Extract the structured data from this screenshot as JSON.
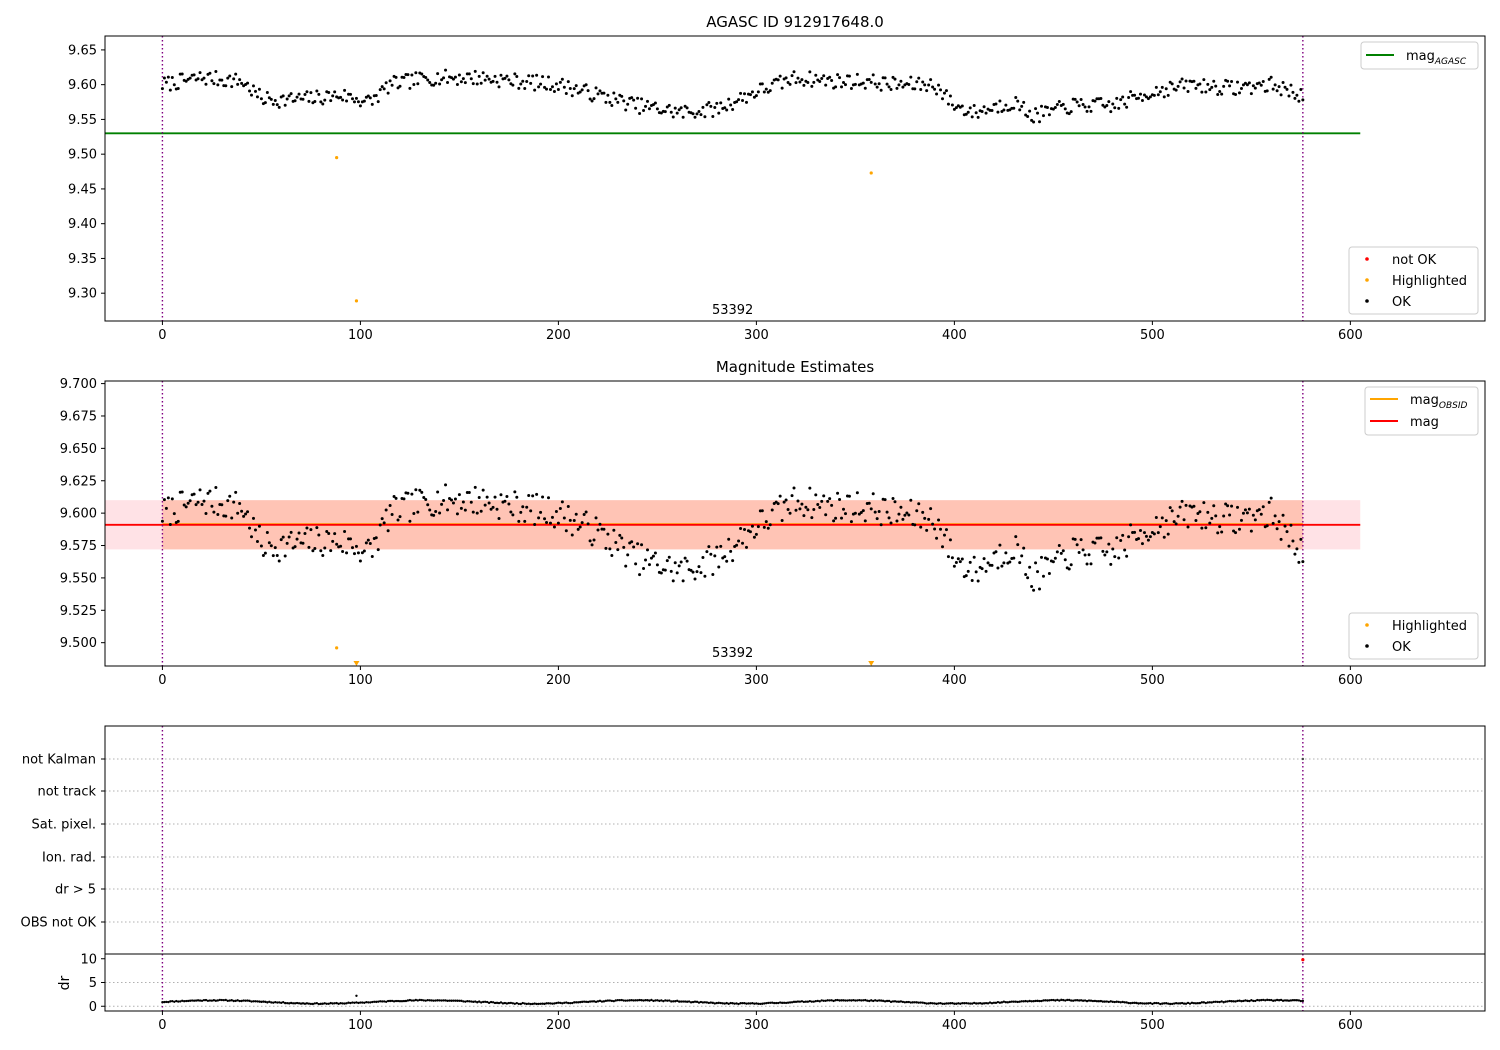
{
  "chart_data": [
    {
      "id": "agasc",
      "type": "scatter",
      "title": "AGASC ID 912917648.0",
      "xlim": [
        -29,
        668
      ],
      "ylim": [
        9.26,
        9.67
      ],
      "xticks": [
        "0",
        "100",
        "200",
        "300",
        "400",
        "500",
        "600"
      ],
      "yticks": [
        "9.30",
        "9.35",
        "9.40",
        "9.45",
        "9.50",
        "9.55",
        "9.60",
        "9.65"
      ],
      "obs_lines_x": [
        0,
        576
      ],
      "obs_label": {
        "text": "53392",
        "x": 288,
        "y": 9.27
      },
      "reference_lines": [
        {
          "name": "mag",
          "subscript": "AGASC",
          "y": 9.53,
          "x_range": [
            -29,
            605
          ],
          "color": "#008000"
        }
      ],
      "legend_lines": [
        {
          "name": "mag",
          "subscript": "AGASC",
          "color": "#008000"
        }
      ],
      "legend_points": [
        {
          "name": "not OK",
          "color": "#ff0000"
        },
        {
          "name": "Highlighted",
          "color": "#ffa500"
        },
        {
          "name": "OK",
          "color": "#000000"
        }
      ],
      "series": [
        {
          "name": "Highlighted",
          "color": "#ffa500",
          "points": [
            [
              88,
              9.495
            ],
            [
              98,
              9.289
            ],
            [
              358,
              9.473
            ]
          ]
        },
        {
          "name": "OK",
          "color": "#000000",
          "anchors": [
            [
              0,
              9.6
            ],
            [
              20,
              9.61
            ],
            [
              40,
              9.605
            ],
            [
              50,
              9.58
            ],
            [
              60,
              9.578
            ],
            [
              75,
              9.58
            ],
            [
              90,
              9.585
            ],
            [
              105,
              9.575
            ],
            [
              115,
              9.6
            ],
            [
              135,
              9.61
            ],
            [
              160,
              9.61
            ],
            [
              180,
              9.605
            ],
            [
              200,
              9.6
            ],
            [
              220,
              9.585
            ],
            [
              240,
              9.57
            ],
            [
              262,
              9.56
            ],
            [
              280,
              9.565
            ],
            [
              300,
              9.59
            ],
            [
              320,
              9.61
            ],
            [
              340,
              9.605
            ],
            [
              355,
              9.605
            ],
            [
              370,
              9.6
            ],
            [
              390,
              9.6
            ],
            [
              400,
              9.57
            ],
            [
              410,
              9.56
            ],
            [
              430,
              9.575
            ],
            [
              440,
              9.555
            ],
            [
              460,
              9.57
            ],
            [
              480,
              9.57
            ],
            [
              500,
              9.59
            ],
            [
              520,
              9.6
            ],
            [
              540,
              9.595
            ],
            [
              560,
              9.6
            ],
            [
              576,
              9.585
            ]
          ],
          "noise": 0.011
        }
      ]
    },
    {
      "id": "estimates",
      "type": "scatter",
      "title": "Magnitude Estimates",
      "xlim": [
        -29,
        668
      ],
      "ylim": [
        9.482,
        9.702
      ],
      "xticks": [
        "0",
        "100",
        "200",
        "300",
        "400",
        "500",
        "600"
      ],
      "yticks": [
        "9.500",
        "9.525",
        "9.550",
        "9.575",
        "9.600",
        "9.625",
        "9.650",
        "9.675",
        "9.700"
      ],
      "obs_lines_x": [
        0,
        576
      ],
      "obs_label": {
        "text": "53392",
        "x": 288,
        "y": 9.489
      },
      "bands": [
        {
          "y_range": [
            9.572,
            9.61
          ],
          "x_range": [
            -29,
            605
          ],
          "color": "#ffb6c1"
        },
        {
          "y_range": [
            9.572,
            9.61
          ],
          "x_range": [
            0,
            576
          ],
          "color": "#ffa07a"
        }
      ],
      "reference_lines": [
        {
          "name": "mag",
          "subscript": "OBSID",
          "y": 9.5915,
          "x_range": [
            0,
            576
          ],
          "color": "#ffa500"
        },
        {
          "name": "mag",
          "y": 9.591,
          "x_range": [
            -29,
            605
          ],
          "color": "#ff0000"
        }
      ],
      "legend_lines": [
        {
          "name": "mag",
          "subscript": "OBSID",
          "color": "#ffa500"
        },
        {
          "name": "mag",
          "color": "#ff0000"
        }
      ],
      "legend_points": [
        {
          "name": "Highlighted",
          "color": "#ffa500"
        },
        {
          "name": "OK",
          "color": "#000000"
        }
      ],
      "series": [
        {
          "name": "Highlighted",
          "color": "#ffa500",
          "points": [
            [
              88,
              9.496
            ]
          ],
          "clipped_x": [
            98,
            358
          ]
        },
        {
          "name": "OK",
          "color": "#000000",
          "anchors": [
            [
              0,
              9.6
            ],
            [
              20,
              9.61
            ],
            [
              40,
              9.605
            ],
            [
              50,
              9.575
            ],
            [
              60,
              9.575
            ],
            [
              75,
              9.578
            ],
            [
              90,
              9.578
            ],
            [
              105,
              9.57
            ],
            [
              115,
              9.6
            ],
            [
              135,
              9.61
            ],
            [
              160,
              9.61
            ],
            [
              180,
              9.605
            ],
            [
              200,
              9.6
            ],
            [
              220,
              9.585
            ],
            [
              240,
              9.565
            ],
            [
              262,
              9.555
            ],
            [
              280,
              9.565
            ],
            [
              300,
              9.59
            ],
            [
              320,
              9.61
            ],
            [
              340,
              9.605
            ],
            [
              355,
              9.605
            ],
            [
              370,
              9.6
            ],
            [
              390,
              9.595
            ],
            [
              400,
              9.565
            ],
            [
              410,
              9.555
            ],
            [
              430,
              9.575
            ],
            [
              440,
              9.55
            ],
            [
              460,
              9.57
            ],
            [
              480,
              9.57
            ],
            [
              500,
              9.59
            ],
            [
              520,
              9.6
            ],
            [
              540,
              9.595
            ],
            [
              560,
              9.6
            ],
            [
              576,
              9.57
            ]
          ],
          "noise": 0.012
        }
      ]
    },
    {
      "id": "flags",
      "type": "scatter",
      "xlim": [
        -29,
        668
      ],
      "categories": [
        "not Kalman",
        "not track",
        "Sat. pixel.",
        "Ion. rad.",
        "dr > 5",
        "OBS not OK"
      ],
      "obs_lines_x": [
        0,
        576
      ],
      "points": []
    },
    {
      "id": "dr",
      "type": "scatter",
      "ylabel": "dr",
      "xlim": [
        -29,
        668
      ],
      "ylim": [
        -1,
        11
      ],
      "xticks": [
        "0",
        "100",
        "200",
        "300",
        "400",
        "500",
        "600"
      ],
      "yticks": [
        "0",
        "5",
        "10"
      ],
      "obs_lines_x": [
        0,
        576
      ],
      "series": [
        {
          "name": "dr",
          "color": "#000000",
          "base": 0.9,
          "amplitude": 0.35,
          "outliers": [
            [
              98,
              2.2
            ]
          ]
        }
      ]
    }
  ]
}
